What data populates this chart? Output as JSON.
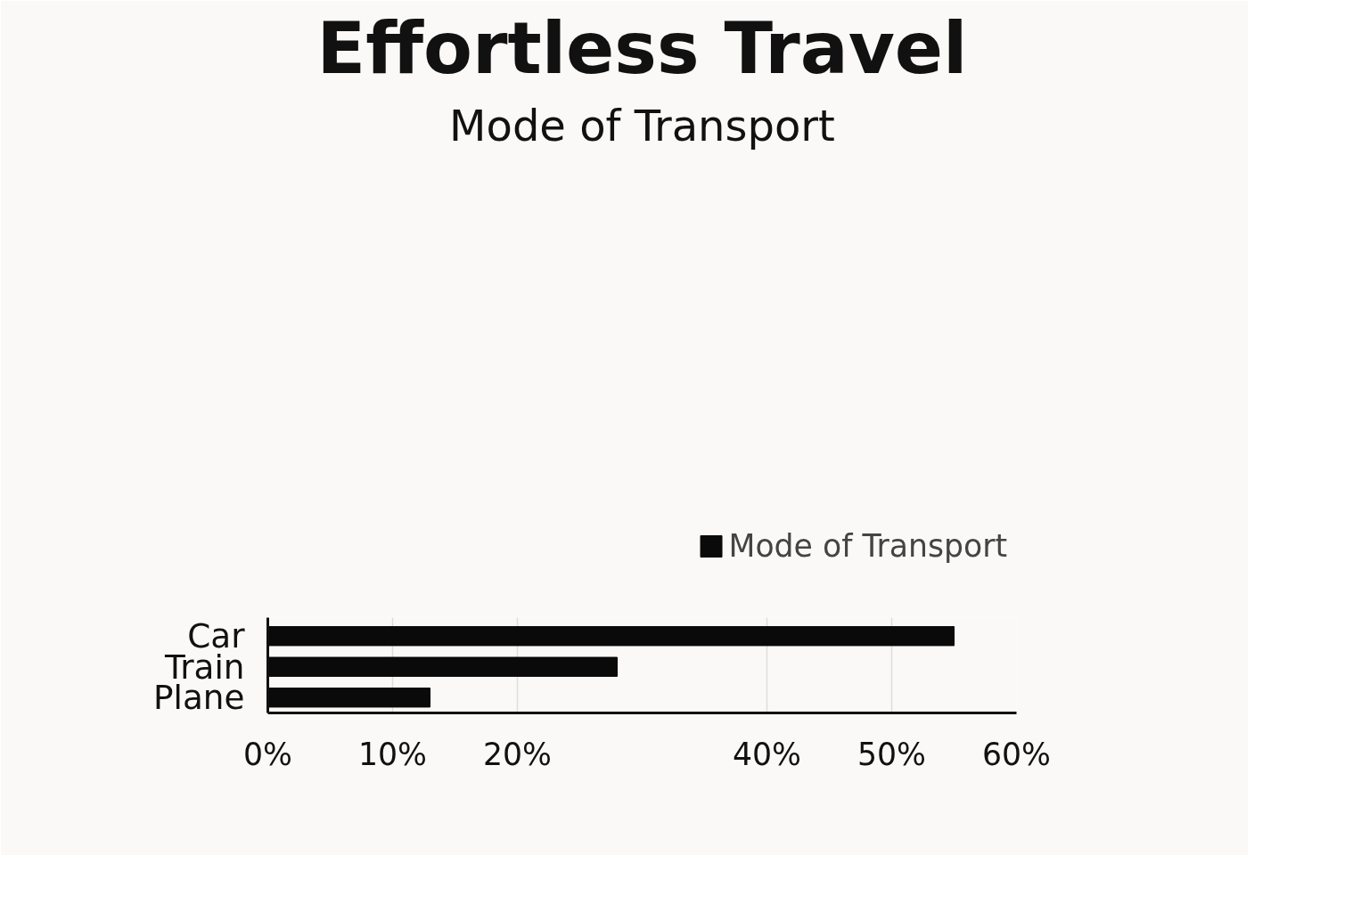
{
  "chart_data": {
    "type": "bar",
    "orientation": "horizontal",
    "title": "Effortless Travel",
    "subtitle": "Mode of Transport",
    "categories": [
      "Car",
      "Train",
      "Plane"
    ],
    "series": [
      {
        "name": "Mode of Transport",
        "color": "#0a0a0a",
        "values": [
          55,
          28,
          13
        ]
      }
    ],
    "xlim": [
      0,
      60
    ],
    "xticks": [
      {
        "value": 0,
        "label": "0%"
      },
      {
        "value": 10,
        "label": "10%"
      },
      {
        "value": 20,
        "label": "20%"
      },
      {
        "value": 40,
        "label": "40%"
      },
      {
        "value": 50,
        "label": "50%"
      },
      {
        "value": 60,
        "label": "60%"
      }
    ],
    "grid": "x",
    "legend": "top right"
  }
}
